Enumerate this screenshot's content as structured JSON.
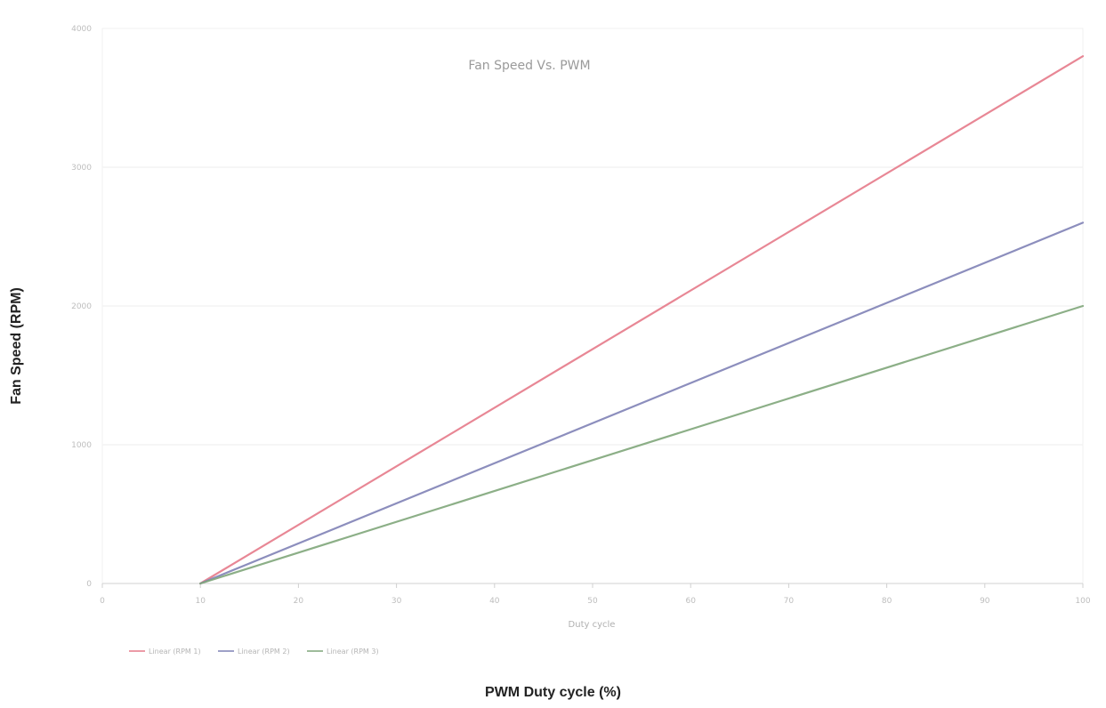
{
  "outer_labels": {
    "y_axis": "Fan Speed (RPM)",
    "x_axis": "PWM Duty cycle (%)"
  },
  "chart_data": {
    "type": "line",
    "title": "Fan Speed Vs. PWM",
    "xlabel": "PWM Duty cycle (%)",
    "ylabel": "Fan Speed (RPM)",
    "inner_xlabel": "Duty cycle",
    "x_ticks": [
      "0",
      "10",
      "20",
      "30",
      "40",
      "50",
      "60",
      "70",
      "80",
      "90",
      "100"
    ],
    "y_ticks": [
      "0",
      "1000",
      "2000",
      "3000",
      "4000"
    ],
    "xlim": [
      0,
      100
    ],
    "ylim": [
      0,
      4000
    ],
    "grid": {
      "horizontal": true,
      "vertical": false
    },
    "legend_position": "bottom-left",
    "series": [
      {
        "name": "Linear (RPM 1)",
        "color": "#e57a8a",
        "x": [
          10,
          100
        ],
        "y": [
          0,
          3800
        ]
      },
      {
        "name": "Linear (RPM 2)",
        "color": "#7f82b6",
        "x": [
          10,
          100
        ],
        "y": [
          0,
          2600
        ]
      },
      {
        "name": "Linear (RPM 3)",
        "color": "#7fa67a",
        "x": [
          10,
          100
        ],
        "y": [
          0,
          2000
        ]
      }
    ]
  }
}
